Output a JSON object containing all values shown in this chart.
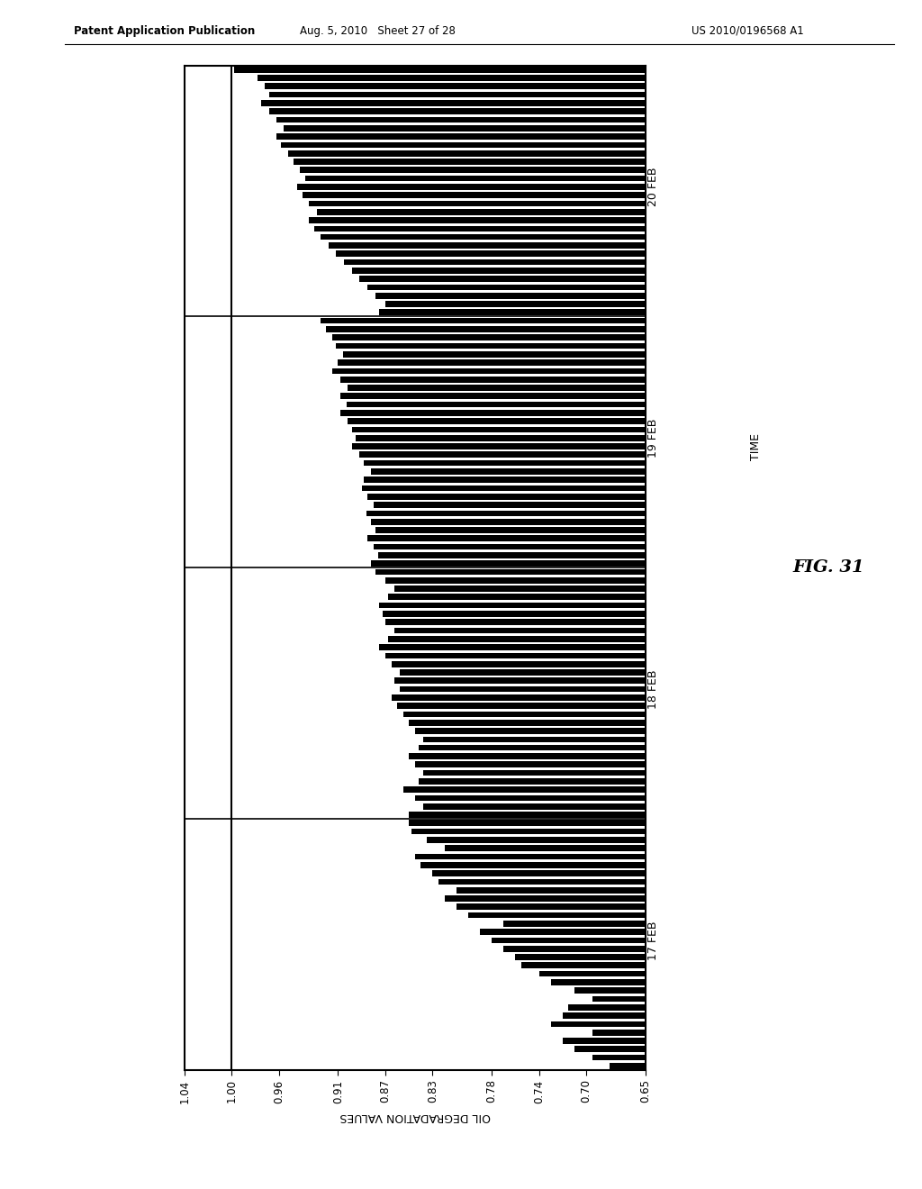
{
  "header_left": "Patent Application Publication",
  "header_mid": "Aug. 5, 2010   Sheet 27 of 28",
  "header_right": "US 2010/0196568 A1",
  "fig_label": "FIG. 31",
  "time_label": "TIME",
  "ylabel": "OIL DEGRADATION VALUES",
  "day_labels": [
    "17 FEB",
    "18 FEB",
    "19 FEB",
    "20 FEB"
  ],
  "xtick_vals": [
    1.04,
    1.0,
    0.96,
    0.91,
    0.87,
    0.83,
    0.78,
    0.74,
    0.7,
    0.65
  ],
  "xtick_labels": [
    "1.04",
    "1.00",
    "0.96",
    "0.91",
    "0.87",
    "0.83",
    "0.78",
    "0.74",
    "0.70",
    "0.65"
  ],
  "xmin": 1.04,
  "xmax": 0.65,
  "reference_line": 1.0,
  "bar_color": "#000000",
  "background_color": "#ffffff",
  "feb17_values": [
    0.68,
    0.695,
    0.71,
    0.72,
    0.695,
    0.73,
    0.72,
    0.715,
    0.695,
    0.71,
    0.73,
    0.74,
    0.755,
    0.76,
    0.77,
    0.78,
    0.79,
    0.77,
    0.8,
    0.81,
    0.82,
    0.81,
    0.825,
    0.83,
    0.84,
    0.845,
    0.82,
    0.835,
    0.848,
    0.85
  ],
  "feb18_values": [
    0.85,
    0.838,
    0.845,
    0.855,
    0.842,
    0.838,
    0.845,
    0.85,
    0.842,
    0.838,
    0.845,
    0.85,
    0.855,
    0.86,
    0.865,
    0.858,
    0.862,
    0.858,
    0.865,
    0.87,
    0.875,
    0.868,
    0.862,
    0.87,
    0.872,
    0.875,
    0.868,
    0.862,
    0.87,
    0.878
  ],
  "feb19_values": [
    0.882,
    0.876,
    0.88,
    0.885,
    0.878,
    0.882,
    0.886,
    0.88,
    0.885,
    0.89,
    0.888,
    0.882,
    0.888,
    0.892,
    0.898,
    0.895,
    0.898,
    0.902,
    0.908,
    0.903,
    0.908,
    0.902,
    0.908,
    0.915,
    0.91,
    0.906,
    0.912,
    0.915,
    0.92,
    0.925
  ],
  "feb20_values": [
    0.875,
    0.87,
    0.878,
    0.885,
    0.892,
    0.898,
    0.905,
    0.912,
    0.918,
    0.925,
    0.93,
    0.935,
    0.928,
    0.935,
    0.94,
    0.945,
    0.938,
    0.942,
    0.948,
    0.952,
    0.958,
    0.962,
    0.956,
    0.962,
    0.968,
    0.975,
    0.968,
    0.972,
    0.978,
    0.998
  ]
}
